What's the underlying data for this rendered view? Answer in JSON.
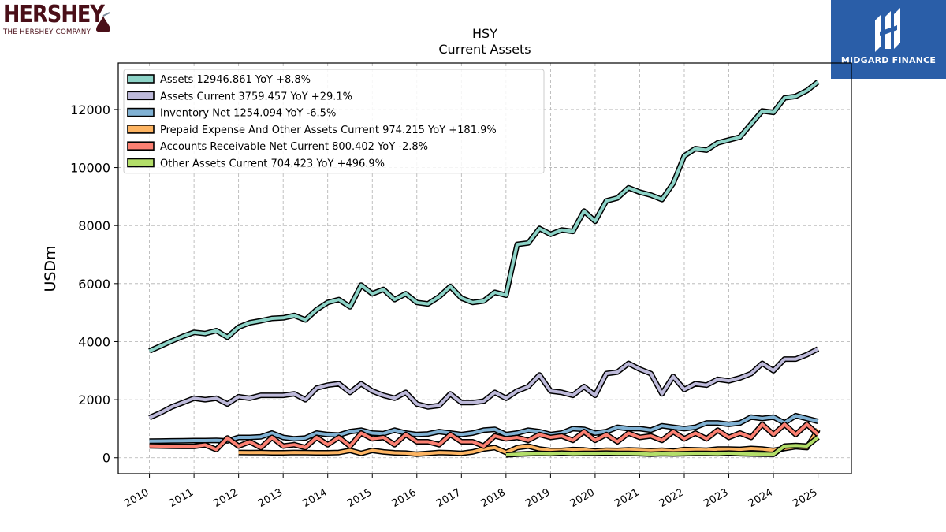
{
  "logos": {
    "left_word": "HERSHEY",
    "left_sub": "THE HERSHEY COMPANY",
    "right_brand": "MIDGARD FINANCE"
  },
  "chart_data": {
    "type": "line",
    "title": "HSY",
    "subtitle": "Current  Assets",
    "ylabel": "USDm",
    "xlabel": "",
    "xlim": [
      2009.3,
      2025.75
    ],
    "ylim": [
      -550,
      13600
    ],
    "yticks": [
      0,
      2000,
      4000,
      6000,
      8000,
      10000,
      12000
    ],
    "xticks": [
      "2010",
      "2011",
      "2012",
      "2013",
      "2014",
      "2015",
      "2016",
      "2017",
      "2018",
      "2019",
      "2020",
      "2021",
      "2022",
      "2023",
      "2024",
      "2025"
    ],
    "grid": true,
    "legend_position": "top-left",
    "series": [
      {
        "name": "Assets",
        "legend": "Assets  12946.861 YoY +8.8%",
        "color": "#8dd3c7",
        "x": [
          2010.0,
          2010.25,
          2010.5,
          2010.75,
          2011.0,
          2011.25,
          2011.5,
          2011.75,
          2012.0,
          2012.25,
          2012.5,
          2012.75,
          2013.0,
          2013.25,
          2013.5,
          2013.75,
          2014.0,
          2014.25,
          2014.5,
          2014.75,
          2015.0,
          2015.25,
          2015.5,
          2015.75,
          2016.0,
          2016.25,
          2016.5,
          2016.75,
          2017.0,
          2017.25,
          2017.5,
          2017.75,
          2018.0,
          2018.25,
          2018.5,
          2018.75,
          2019.0,
          2019.25,
          2019.5,
          2019.75,
          2020.0,
          2020.25,
          2020.5,
          2020.75,
          2021.0,
          2021.25,
          2021.5,
          2021.75,
          2022.0,
          2022.25,
          2022.5,
          2022.75,
          2023.0,
          2023.25,
          2023.5,
          2023.75,
          2024.0,
          2024.25,
          2024.5,
          2024.75,
          2025.0
        ],
        "y": [
          3680,
          3850,
          4020,
          4180,
          4320,
          4280,
          4380,
          4150,
          4500,
          4650,
          4720,
          4800,
          4820,
          4900,
          4750,
          5100,
          5350,
          5450,
          5200,
          5950,
          5650,
          5800,
          5450,
          5650,
          5350,
          5300,
          5550,
          5900,
          5500,
          5350,
          5400,
          5700,
          5600,
          7350,
          7400,
          7900,
          7700,
          7850,
          7800,
          8500,
          8150,
          8850,
          8950,
          9300,
          9150,
          9050,
          8900,
          9450,
          10400,
          10650,
          10600,
          10850,
          10950,
          11050,
          11500,
          11950,
          11900,
          12400,
          12450,
          12650,
          12950
        ]
      },
      {
        "name": "Assets Current",
        "legend": "Assets Current  3759.457 YoY +29.1%",
        "color": "#bebada",
        "x": [
          2010.0,
          2010.25,
          2010.5,
          2010.75,
          2011.0,
          2011.25,
          2011.5,
          2011.75,
          2012.0,
          2012.25,
          2012.5,
          2012.75,
          2013.0,
          2013.25,
          2013.5,
          2013.75,
          2014.0,
          2014.25,
          2014.5,
          2014.75,
          2015.0,
          2015.25,
          2015.5,
          2015.75,
          2016.0,
          2016.25,
          2016.5,
          2016.75,
          2017.0,
          2017.25,
          2017.5,
          2017.75,
          2018.0,
          2018.25,
          2018.5,
          2018.75,
          2019.0,
          2019.25,
          2019.5,
          2019.75,
          2020.0,
          2020.25,
          2020.5,
          2020.75,
          2021.0,
          2021.25,
          2021.5,
          2021.75,
          2022.0,
          2022.25,
          2022.5,
          2022.75,
          2023.0,
          2023.25,
          2023.5,
          2023.75,
          2024.0,
          2024.25,
          2024.5,
          2024.75,
          2025.0
        ],
        "y": [
          1380,
          1550,
          1750,
          1900,
          2050,
          2000,
          2050,
          1850,
          2100,
          2050,
          2150,
          2150,
          2150,
          2200,
          2000,
          2400,
          2500,
          2550,
          2250,
          2550,
          2300,
          2150,
          2050,
          2250,
          1850,
          1750,
          1800,
          2200,
          1900,
          1900,
          1950,
          2250,
          2050,
          2300,
          2450,
          2850,
          2300,
          2250,
          2150,
          2450,
          2150,
          2900,
          2950,
          3250,
          3050,
          2900,
          2200,
          2800,
          2350,
          2550,
          2500,
          2700,
          2650,
          2750,
          2900,
          3250,
          3000,
          3400,
          3400,
          3550,
          3750
        ]
      },
      {
        "name": "Inventory Net",
        "legend": "Inventory Net  1254.094 YoY -6.5%",
        "color": "#80b1d3",
        "x": [
          2010.0,
          2010.25,
          2010.5,
          2010.75,
          2011.0,
          2011.25,
          2011.5,
          2011.75,
          2012.0,
          2012.25,
          2012.5,
          2012.75,
          2013.0,
          2013.25,
          2013.5,
          2013.75,
          2014.0,
          2014.25,
          2014.5,
          2014.75,
          2015.0,
          2015.25,
          2015.5,
          2015.75,
          2016.0,
          2016.25,
          2016.5,
          2016.75,
          2017.0,
          2017.25,
          2017.5,
          2017.75,
          2018.0,
          2018.25,
          2018.5,
          2018.75,
          2019.0,
          2019.25,
          2019.5,
          2019.75,
          2020.0,
          2020.25,
          2020.5,
          2020.75,
          2021.0,
          2021.25,
          2021.5,
          2021.75,
          2022.0,
          2022.25,
          2022.5,
          2022.75,
          2023.0,
          2023.25,
          2023.5,
          2023.75,
          2024.0,
          2024.25,
          2024.5,
          2024.75,
          2025.0
        ],
        "y": [
          570,
          575,
          580,
          585,
          590,
          590,
          600,
          580,
          700,
          700,
          720,
          850,
          700,
          650,
          680,
          850,
          800,
          780,
          900,
          950,
          850,
          830,
          950,
          850,
          800,
          820,
          900,
          850,
          800,
          850,
          950,
          980,
          800,
          850,
          950,
          900,
          800,
          850,
          1000,
          980,
          850,
          900,
          1050,
          1000,
          1000,
          950,
          1100,
          1050,
          1000,
          1050,
          1200,
          1200,
          1150,
          1200,
          1400,
          1350,
          1400,
          1200,
          1450,
          1350,
          1254
        ]
      },
      {
        "name": "Prepaid Expense And Other Assets Current",
        "legend": "Prepaid Expense And Other Assets Current  974.215 YoY +181.9%",
        "color": "#fdb462",
        "x": [
          2012.0,
          2012.25,
          2012.5,
          2012.75,
          2013.0,
          2013.25,
          2013.5,
          2013.75,
          2014.0,
          2014.25,
          2014.5,
          2014.75,
          2015.0,
          2015.25,
          2015.5,
          2015.75,
          2016.0,
          2016.25,
          2016.5,
          2016.75,
          2017.0,
          2017.25,
          2017.5,
          2017.75,
          2018.0,
          2018.25,
          2018.5,
          2018.75,
          2019.0,
          2019.25,
          2019.5,
          2019.75,
          2020.0,
          2020.25,
          2020.5,
          2020.75,
          2021.0,
          2021.25,
          2021.5,
          2021.75,
          2022.0,
          2022.25,
          2022.5,
          2022.75,
          2023.0,
          2023.25,
          2023.5,
          2023.75,
          2024.0,
          2024.25,
          2024.5,
          2024.75,
          2025.0
        ],
        "y": [
          180,
          175,
          180,
          170,
          170,
          180,
          175,
          170,
          170,
          180,
          250,
          150,
          250,
          200,
          170,
          160,
          120,
          150,
          180,
          170,
          150,
          200,
          300,
          350,
          180,
          350,
          400,
          300,
          250,
          250,
          280,
          270,
          230,
          260,
          250,
          270,
          260,
          240,
          260,
          230,
          280,
          270,
          260,
          300,
          300,
          290,
          320,
          300,
          250,
          320,
          380,
          350,
          974
        ]
      },
      {
        "name": "Accounts Receivable Net Current",
        "legend": "Accounts Receivable Net Current  800.402 YoY -2.8%",
        "color": "#fb8072",
        "x": [
          2010.0,
          2010.25,
          2010.5,
          2010.75,
          2011.0,
          2011.25,
          2011.5,
          2011.75,
          2012.0,
          2012.25,
          2012.5,
          2012.75,
          2013.0,
          2013.25,
          2013.5,
          2013.75,
          2014.0,
          2014.25,
          2014.5,
          2014.75,
          2015.0,
          2015.25,
          2015.5,
          2015.75,
          2016.0,
          2016.25,
          2016.5,
          2016.75,
          2017.0,
          2017.25,
          2017.5,
          2017.75,
          2018.0,
          2018.25,
          2018.5,
          2018.75,
          2019.0,
          2019.25,
          2019.5,
          2019.75,
          2020.0,
          2020.25,
          2020.5,
          2020.75,
          2021.0,
          2021.25,
          2021.5,
          2021.75,
          2022.0,
          2022.25,
          2022.5,
          2022.75,
          2023.0,
          2023.25,
          2023.5,
          2023.75,
          2024.0,
          2024.25,
          2024.5,
          2024.75,
          2025.0
        ],
        "y": [
          410,
          400,
          395,
          390,
          390,
          440,
          280,
          680,
          400,
          550,
          350,
          700,
          400,
          450,
          350,
          700,
          450,
          700,
          400,
          850,
          650,
          700,
          450,
          800,
          550,
          550,
          450,
          800,
          550,
          550,
          400,
          750,
          650,
          700,
          600,
          800,
          700,
          750,
          600,
          900,
          600,
          800,
          550,
          850,
          700,
          750,
          600,
          900,
          650,
          850,
          650,
          950,
          700,
          850,
          700,
          1150,
          800,
          1150,
          800,
          1150,
          800
        ]
      },
      {
        "name": "Other Assets Current",
        "legend": "Other Assets Current  704.423 YoY +496.9%",
        "color": "#b3de69",
        "x": [
          2018.0,
          2018.25,
          2018.5,
          2018.75,
          2019.0,
          2019.25,
          2019.5,
          2019.75,
          2020.0,
          2020.25,
          2020.5,
          2020.75,
          2021.0,
          2021.25,
          2021.5,
          2021.75,
          2022.0,
          2022.25,
          2022.5,
          2022.75,
          2023.0,
          2023.25,
          2023.5,
          2023.75,
          2024.0,
          2024.25,
          2024.5,
          2024.75,
          2025.0
        ],
        "y": [
          100,
          120,
          140,
          150,
          140,
          160,
          140,
          150,
          150,
          160,
          150,
          150,
          140,
          120,
          140,
          130,
          140,
          150,
          150,
          140,
          160,
          140,
          130,
          120,
          118,
          400,
          420,
          400,
          704
        ]
      }
    ]
  }
}
